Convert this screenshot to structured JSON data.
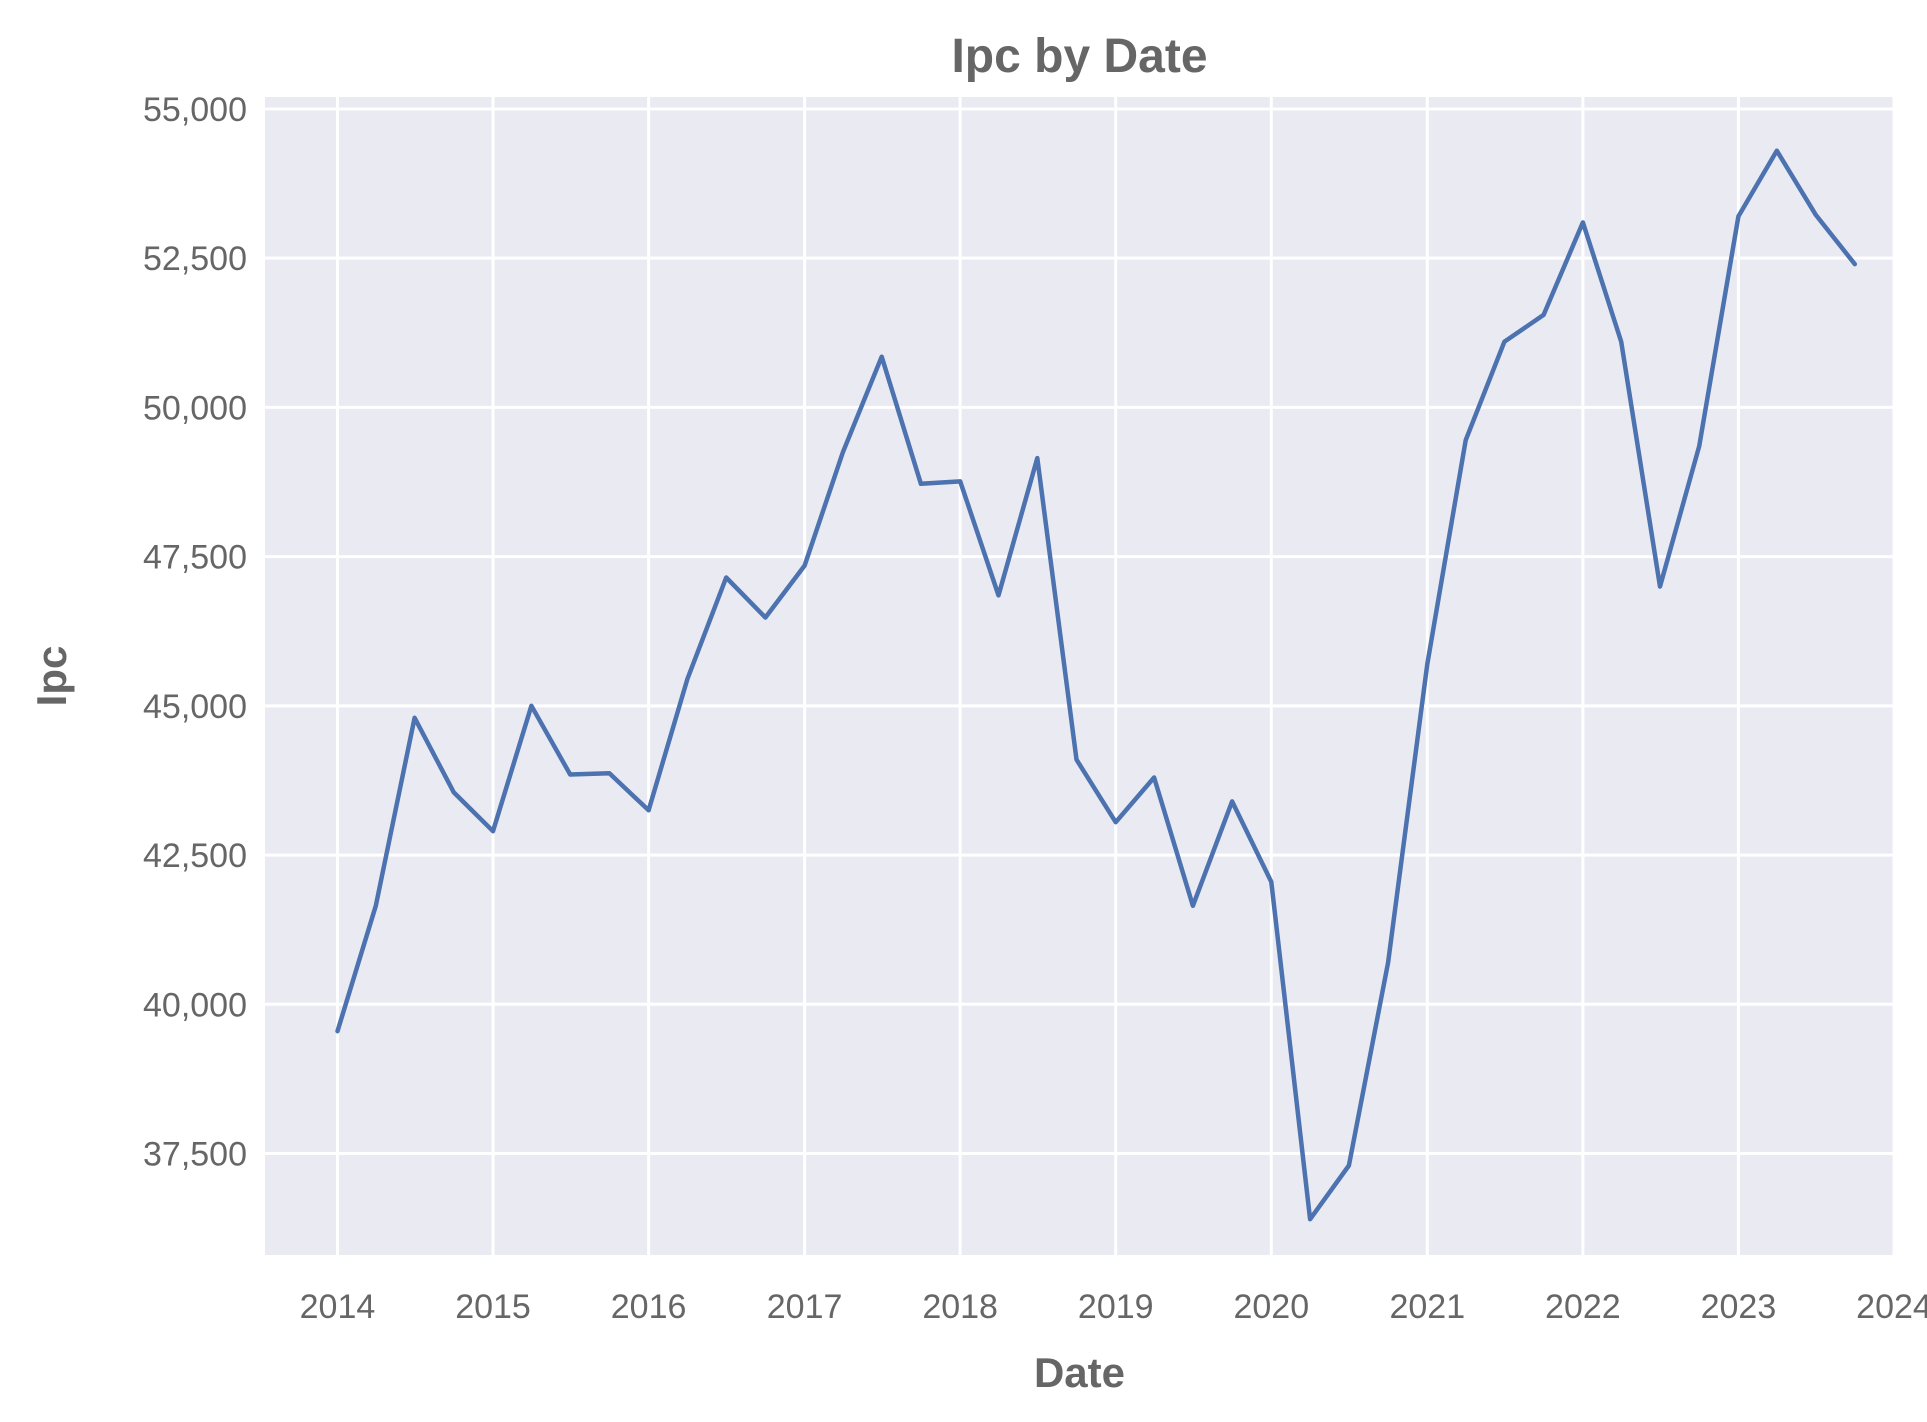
{
  "chart_data": {
    "type": "line",
    "title": "Ipc by Date",
    "xlabel": "Date",
    "ylabel": "Ipc",
    "x_ticks": [
      "2014",
      "2015",
      "2016",
      "2017",
      "2018",
      "2019",
      "2020",
      "2021",
      "2022",
      "2023",
      "2024"
    ],
    "y_ticks": [
      "37,500",
      "40,000",
      "42,500",
      "45,000",
      "47,500",
      "50,000",
      "52,500",
      "55,000"
    ],
    "y_tick_values": [
      37500,
      40000,
      42500,
      45000,
      47500,
      50000,
      52500,
      55000
    ],
    "xlim": [
      "2013-07-15",
      "2024-01-01"
    ],
    "ylim": [
      35800,
      55200
    ],
    "grid": true,
    "legend": "none",
    "colors": {
      "background": "#EAEAF2",
      "grid": "#FFFFFF",
      "line": "#4C72B0",
      "text": "#666666"
    },
    "series": [
      {
        "x": [
          "2014-01-01",
          "2014-04-01",
          "2014-07-01",
          "2014-10-01",
          "2015-01-01",
          "2015-04-01",
          "2015-07-01",
          "2015-10-01",
          "2016-01-01",
          "2016-04-01",
          "2016-07-01",
          "2016-10-01",
          "2017-01-01",
          "2017-04-01",
          "2017-07-01",
          "2017-10-01",
          "2018-01-01",
          "2018-04-01",
          "2018-07-01",
          "2018-10-01",
          "2019-01-01",
          "2019-04-01",
          "2019-07-01",
          "2019-10-01",
          "2020-01-01",
          "2020-04-01",
          "2020-07-01",
          "2020-10-01",
          "2021-01-01",
          "2021-04-01",
          "2021-07-01",
          "2021-10-01",
          "2022-01-01",
          "2022-04-01",
          "2022-07-01",
          "2022-10-01",
          "2023-01-01",
          "2023-04-01",
          "2023-07-01",
          "2023-10-01"
        ],
        "values": [
          39550,
          41650,
          44800,
          43550,
          42900,
          45000,
          43850,
          43870,
          43250,
          45450,
          47150,
          46480,
          47350,
          49250,
          50850,
          48720,
          48760,
          46850,
          49150,
          44100,
          43050,
          43800,
          41650,
          43400,
          42050,
          36400,
          37300,
          40700,
          45700,
          49450,
          51100,
          51550,
          53100,
          51100,
          47000,
          49350,
          53200,
          54300,
          53230,
          52400
        ]
      }
    ]
  }
}
